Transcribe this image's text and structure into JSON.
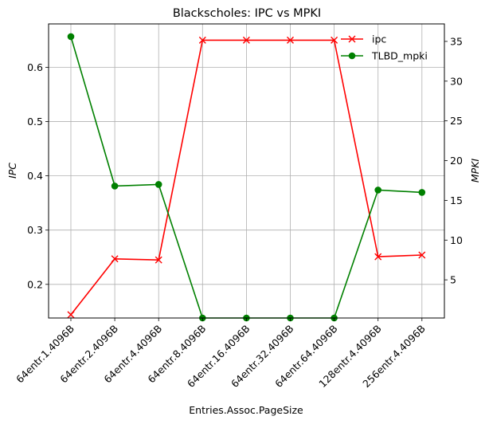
{
  "chart_data": {
    "type": "line",
    "title": "Blackscholes: IPC vs MPKI",
    "xlabel": "Entries.Assoc.PageSize",
    "ylabel_left": "IPC",
    "ylabel_right": "MPKI",
    "categories": [
      "64entr.1.4096B",
      "64entr.2.4096B",
      "64entr.4.4096B",
      "64entr.8.4096B",
      "64entr.16.4096B",
      "64entr.32.4096B",
      "64entr.64.4096B",
      "128entr.4.4096B",
      "256entr.4.4096B"
    ],
    "series": [
      {
        "name": "ipc",
        "axis": "left",
        "color": "#ff0000",
        "marker": "x",
        "values": [
          0.144,
          0.247,
          0.245,
          0.65,
          0.65,
          0.65,
          0.65,
          0.251,
          0.254
        ]
      },
      {
        "name": "TLBD_mpki",
        "axis": "right",
        "color": "#008000",
        "marker": "o",
        "values": [
          35.6,
          16.8,
          17.0,
          0.2,
          0.2,
          0.2,
          0.2,
          16.3,
          16.0
        ]
      }
    ],
    "ylim_left": [
      0.138,
      0.68
    ],
    "ylim_right": [
      0.2,
      37.2
    ],
    "yticks_left": [
      "0.2",
      "0.3",
      "0.4",
      "0.5",
      "0.6"
    ],
    "yticks_right": [
      "5",
      "10",
      "15",
      "20",
      "25",
      "30",
      "35"
    ],
    "grid": true,
    "legend_position": "top-right"
  }
}
